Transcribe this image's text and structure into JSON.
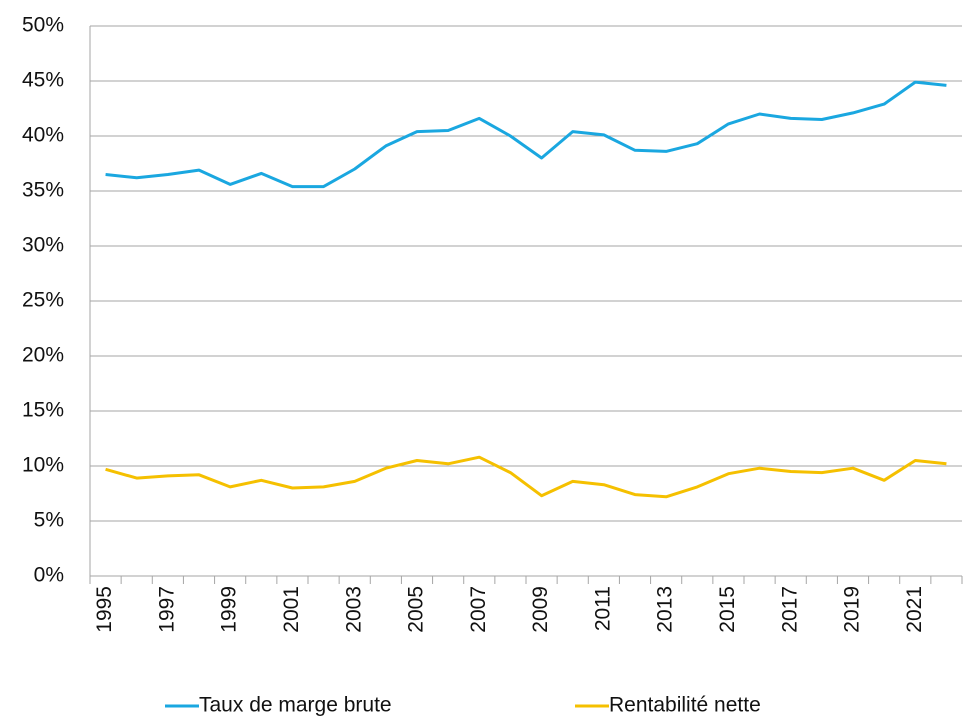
{
  "chart_data": {
    "type": "line",
    "categories": [
      "1995",
      null,
      "1997",
      null,
      "1999",
      null,
      "2001",
      null,
      "2003",
      null,
      "2005",
      null,
      "2007",
      null,
      "2009",
      null,
      "2011",
      null,
      "2013",
      null,
      "2015",
      null,
      "2017",
      null,
      "2019",
      null,
      "2021",
      null
    ],
    "series": [
      {
        "name": "Taux de marge brute",
        "color": "#1aa7e0",
        "values": [
          36.5,
          36.2,
          36.5,
          36.9,
          35.6,
          36.6,
          35.4,
          35.4,
          37.0,
          39.1,
          40.4,
          40.5,
          41.6,
          40.0,
          38.0,
          40.4,
          40.1,
          38.7,
          38.6,
          39.3,
          41.1,
          42.0,
          41.6,
          41.5,
          42.1,
          42.9,
          44.9,
          44.6
        ]
      },
      {
        "name": "Rentabilité nette",
        "color": "#f5c000",
        "values": [
          9.7,
          8.9,
          9.1,
          9.2,
          8.1,
          8.7,
          8.0,
          8.1,
          8.6,
          9.8,
          10.5,
          10.2,
          10.8,
          9.4,
          7.3,
          8.6,
          8.3,
          7.4,
          7.2,
          8.1,
          9.3,
          9.8,
          9.5,
          9.4,
          9.8,
          8.7,
          10.5,
          10.2
        ]
      }
    ],
    "ylim": [
      0,
      50
    ],
    "yticks": [
      {
        "value": 0,
        "label": "0%"
      },
      {
        "value": 5,
        "label": "5%"
      },
      {
        "value": 10,
        "label": "10%"
      },
      {
        "value": 15,
        "label": "15%"
      },
      {
        "value": 20,
        "label": "20%"
      },
      {
        "value": 25,
        "label": "25%"
      },
      {
        "value": 30,
        "label": "30%"
      },
      {
        "value": 35,
        "label": "35%"
      },
      {
        "value": 40,
        "label": "40%"
      },
      {
        "value": 45,
        "label": "45%"
      },
      {
        "value": 50,
        "label": "50%"
      }
    ],
    "grid": true,
    "legend": "bottom"
  }
}
